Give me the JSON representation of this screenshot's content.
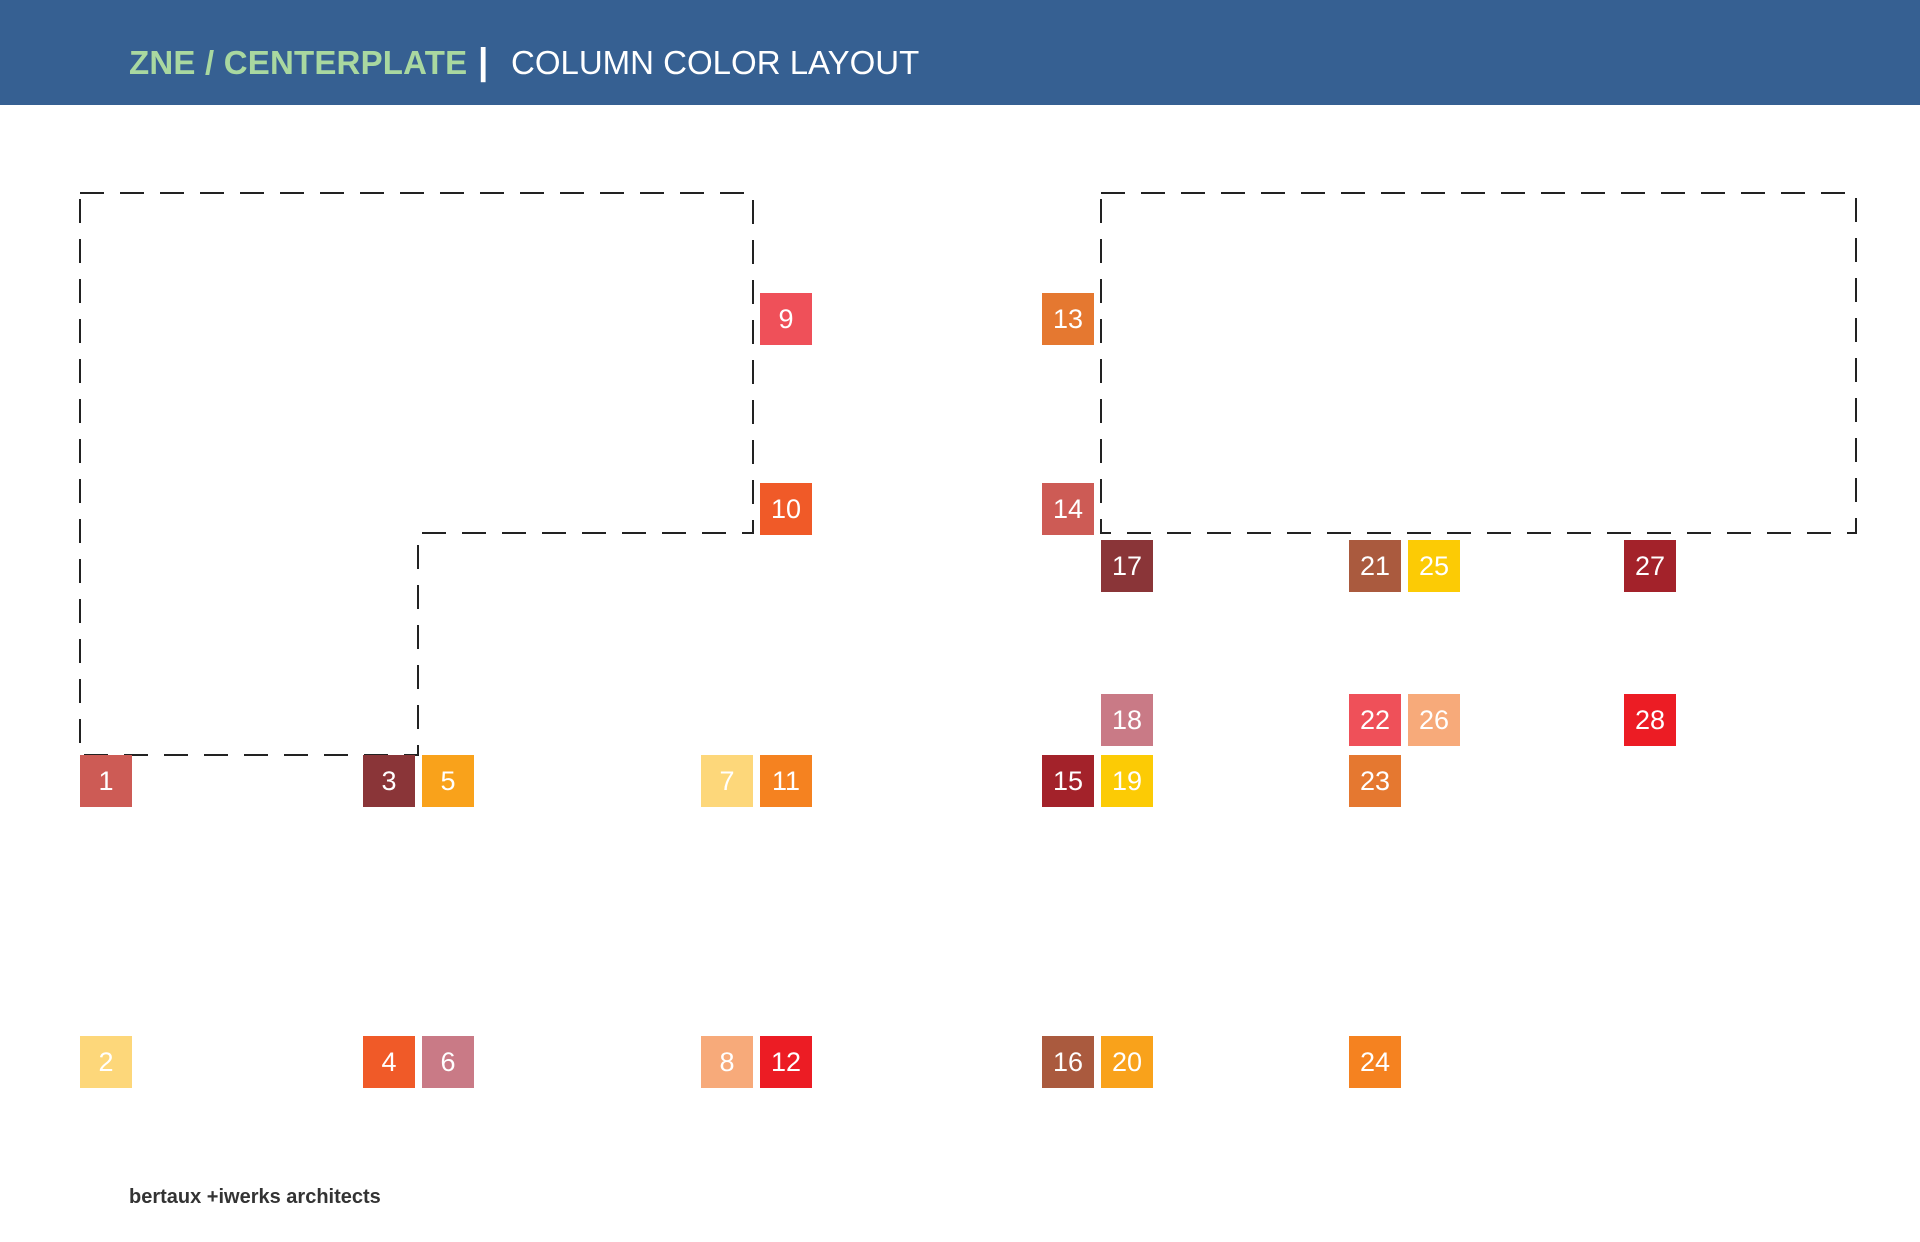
{
  "header": {
    "project": "ZNE / CENTERPLATE",
    "separator": "|",
    "sheet_title": "COLUMN COLOR LAYOUT",
    "background": "#366092",
    "project_color": "#a9d8a0"
  },
  "footer": {
    "firm": "bertaux +iwerks architects"
  },
  "columns": [
    {
      "label": "1",
      "color": "#cd5b55"
    },
    {
      "label": "2",
      "color": "#fdd77a"
    },
    {
      "label": "3",
      "color": "#8a3538"
    },
    {
      "label": "4",
      "color": "#f05a28"
    },
    {
      "label": "5",
      "color": "#f9a21b"
    },
    {
      "label": "6",
      "color": "#c97a86"
    },
    {
      "label": "7",
      "color": "#fdd77a"
    },
    {
      "label": "8",
      "color": "#f7aa7a"
    },
    {
      "label": "9",
      "color": "#ef5059"
    },
    {
      "label": "10",
      "color": "#f05a28"
    },
    {
      "label": "11",
      "color": "#f58220"
    },
    {
      "label": "12",
      "color": "#ec1c24"
    },
    {
      "label": "13",
      "color": "#e57830"
    },
    {
      "label": "14",
      "color": "#cd5b55"
    },
    {
      "label": "15",
      "color": "#a3222a"
    },
    {
      "label": "16",
      "color": "#aa5a3e"
    },
    {
      "label": "17",
      "color": "#8a3538"
    },
    {
      "label": "18",
      "color": "#c97a86"
    },
    {
      "label": "19",
      "color": "#fccb05"
    },
    {
      "label": "20",
      "color": "#f9a21b"
    },
    {
      "label": "21",
      "color": "#aa5a3e"
    },
    {
      "label": "22",
      "color": "#ef5059"
    },
    {
      "label": "23",
      "color": "#e57830"
    },
    {
      "label": "24",
      "color": "#f58220"
    },
    {
      "label": "25",
      "color": "#fccb05"
    },
    {
      "label": "26",
      "color": "#f7aa7a"
    },
    {
      "label": "27",
      "color": "#a3222a"
    },
    {
      "label": "28",
      "color": "#ec1c24"
    }
  ]
}
